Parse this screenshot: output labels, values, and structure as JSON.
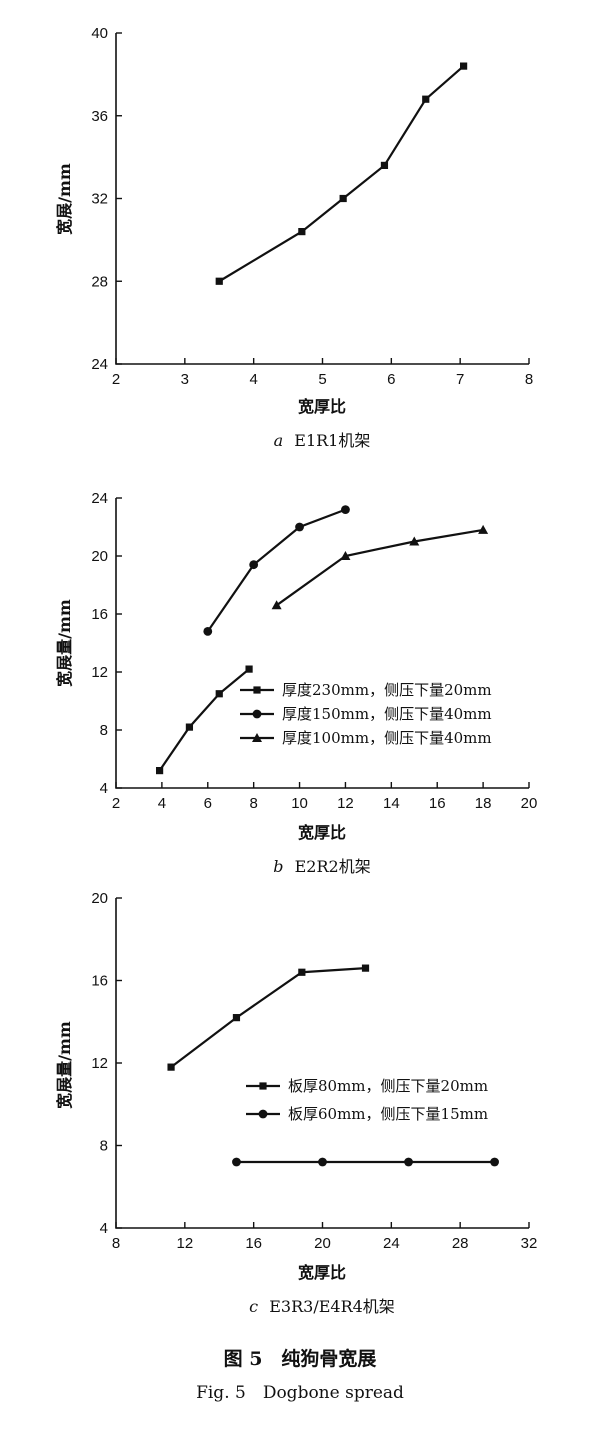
{
  "figure": {
    "title_cn": "图 5　纯狗骨宽展",
    "title_en": "Fig. 5　Dogbone spread"
  },
  "chart_data": [
    {
      "type": "line",
      "caption_letter": "a",
      "caption_text": "E1R1机架",
      "xlabel": "宽厚比",
      "ylabel": "宽展/mm",
      "xlim": [
        2,
        8
      ],
      "ylim": [
        24,
        40
      ],
      "xticks": [
        2,
        3,
        4,
        5,
        6,
        7,
        8
      ],
      "yticks": [
        24,
        28,
        32,
        36,
        40
      ],
      "legend": false,
      "series": [
        {
          "name": "",
          "marker": "square",
          "x": [
            3.5,
            4.7,
            5.3,
            5.9,
            6.5,
            7.05
          ],
          "y": [
            28.0,
            30.4,
            32.0,
            33.6,
            36.8,
            38.4
          ]
        }
      ]
    },
    {
      "type": "line",
      "caption_letter": "b",
      "caption_text": "E2R2机架",
      "xlabel": "宽厚比",
      "ylabel": "宽展量/mm",
      "xlim": [
        2,
        20
      ],
      "ylim": [
        4,
        24
      ],
      "xticks": [
        2,
        4,
        6,
        8,
        10,
        12,
        14,
        16,
        18,
        20
      ],
      "yticks": [
        4,
        8,
        12,
        16,
        20,
        24
      ],
      "legend": true,
      "legend_position": "lower-right",
      "series": [
        {
          "name": "厚度230mm，侧压下量20mm",
          "marker": "square",
          "x": [
            3.9,
            5.2,
            6.5,
            7.8
          ],
          "y": [
            5.2,
            8.2,
            10.5,
            12.2
          ]
        },
        {
          "name": "厚度150mm，侧压下量40mm",
          "marker": "circle",
          "x": [
            6.0,
            8.0,
            10.0,
            12.0
          ],
          "y": [
            14.8,
            19.4,
            22.0,
            23.2
          ]
        },
        {
          "name": "厚度100mm，侧压下量40mm",
          "marker": "triangle",
          "x": [
            9.0,
            12.0,
            15.0,
            18.0
          ],
          "y": [
            16.6,
            20.0,
            21.0,
            21.8
          ]
        }
      ]
    },
    {
      "type": "line",
      "caption_letter": "c",
      "caption_text": "E3R3/E4R4机架",
      "xlabel": "宽厚比",
      "ylabel": "宽展量/mm",
      "xlim": [
        8,
        32
      ],
      "ylim": [
        4,
        20
      ],
      "xticks": [
        8,
        12,
        16,
        20,
        24,
        28,
        32
      ],
      "yticks": [
        4,
        8,
        12,
        16,
        20
      ],
      "legend": true,
      "legend_position": "center-right",
      "series": [
        {
          "name": "板厚80mm，侧压下量20mm",
          "marker": "square",
          "x": [
            11.2,
            15.0,
            18.8,
            22.5
          ],
          "y": [
            11.8,
            14.2,
            16.4,
            16.6
          ]
        },
        {
          "name": "板厚60mm，侧压下量15mm",
          "marker": "circle",
          "x": [
            15.0,
            20.0,
            25.0,
            30.0
          ],
          "y": [
            7.2,
            7.2,
            7.2,
            7.2
          ]
        }
      ]
    }
  ]
}
